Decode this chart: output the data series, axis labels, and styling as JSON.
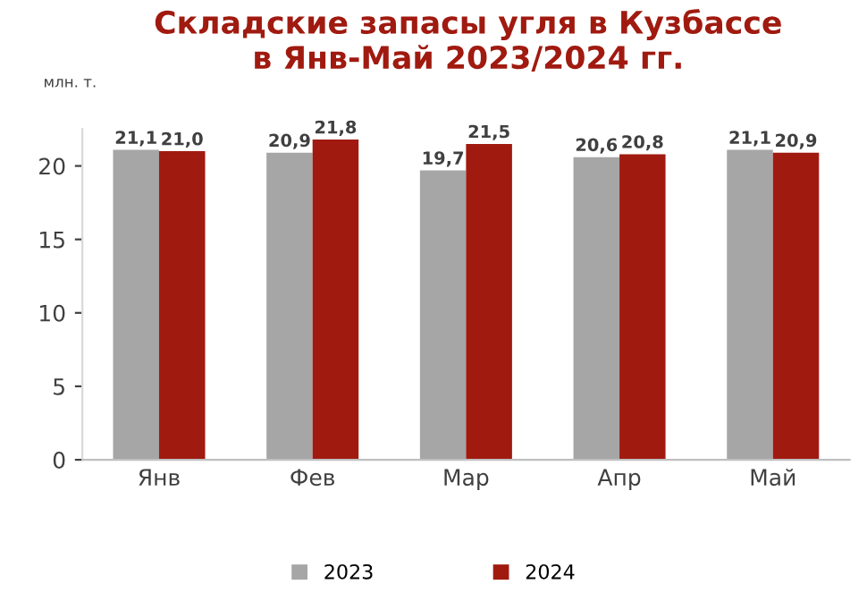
{
  "chart_data": {
    "type": "bar",
    "title": "Складские запасы угля в Кузбассе\nв Янв-Май 2023/2024 гг.",
    "ylabel": "млн. т.",
    "categories": [
      "Янв",
      "Фев",
      "Мар",
      "Апр",
      "Май"
    ],
    "series": [
      {
        "name": "2023",
        "color": "#a6a6a6",
        "values": [
          21.1,
          20.9,
          19.7,
          20.6,
          21.1
        ],
        "value_labels": [
          "21,1",
          "20,9",
          "19,7",
          "20,6",
          "21,1"
        ]
      },
      {
        "name": "2024",
        "color": "#a01a10",
        "values": [
          21.0,
          21.8,
          21.5,
          20.8,
          20.9
        ],
        "value_labels": [
          "21,0",
          "21,8",
          "21,5",
          "20,8",
          "20,9"
        ]
      }
    ],
    "ylim": [
      0,
      22.5
    ],
    "yticks": [
      0,
      5,
      10,
      15,
      20
    ],
    "grid": false,
    "legend": "bottom"
  }
}
